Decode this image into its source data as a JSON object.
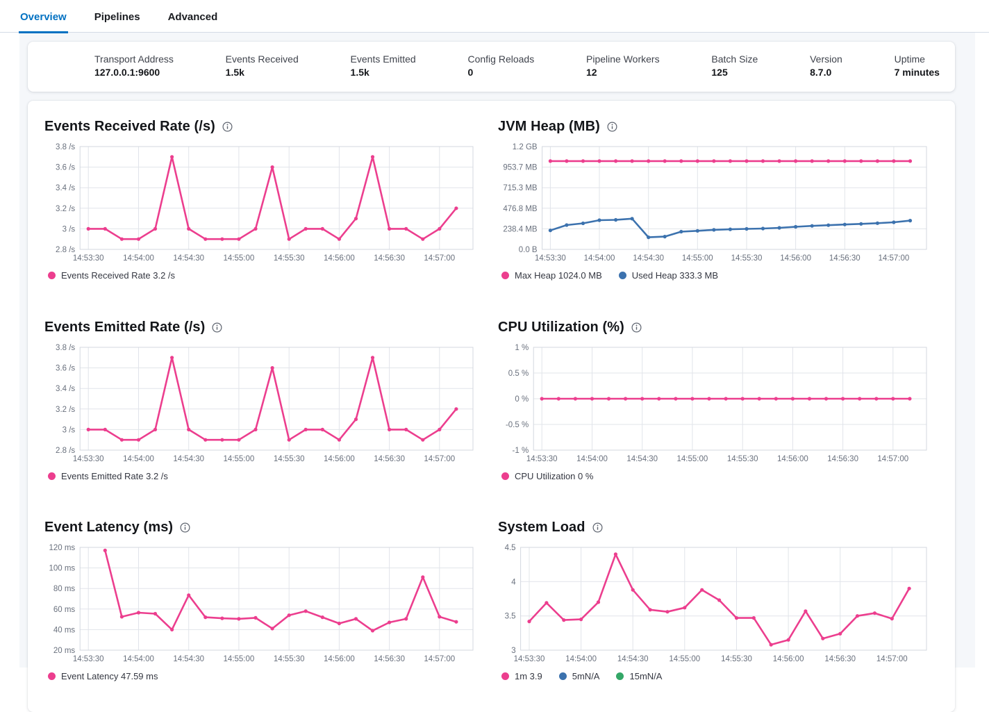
{
  "tabs": [
    {
      "label": "Overview",
      "active": true
    },
    {
      "label": "Pipelines",
      "active": false
    },
    {
      "label": "Advanced",
      "active": false
    }
  ],
  "stats": [
    {
      "label": "Transport Address",
      "value": "127.0.0.1:9600"
    },
    {
      "label": "Events Received",
      "value": "1.5k"
    },
    {
      "label": "Events Emitted",
      "value": "1.5k"
    },
    {
      "label": "Config Reloads",
      "value": "0"
    },
    {
      "label": "Pipeline Workers",
      "value": "12"
    },
    {
      "label": "Batch Size",
      "value": "125"
    },
    {
      "label": "Version",
      "value": "8.7.0"
    },
    {
      "label": "Uptime",
      "value": "7 minutes"
    }
  ],
  "colors": {
    "accent_blue": "#0071c2",
    "series_pink": "#ec3e8e",
    "series_blue": "#3c72ae",
    "series_green": "#34a767"
  },
  "chart_data": [
    {
      "type": "line",
      "title": "Events Received Rate (/s)",
      "xlabel": "",
      "ylabel": "/s",
      "ylim": [
        2.8,
        3.8
      ],
      "x_domain": [
        "14:53:25",
        "14:57:20"
      ],
      "x_ticks": [
        "14:53:30",
        "14:54:00",
        "14:54:30",
        "14:55:00",
        "14:55:30",
        "14:56:00",
        "14:56:30",
        "14:57:00"
      ],
      "y_ticks": [
        {
          "value": 2.8,
          "label": "2.8 /s"
        },
        {
          "value": 3.0,
          "label": "3 /s"
        },
        {
          "value": 3.2,
          "label": "3.2 /s"
        },
        {
          "value": 3.4,
          "label": "3.4 /s"
        },
        {
          "value": 3.6,
          "label": "3.6 /s"
        },
        {
          "value": 3.8,
          "label": "3.8 /s"
        }
      ],
      "x": [
        "14:53:30",
        "14:53:40",
        "14:53:50",
        "14:54:00",
        "14:54:10",
        "14:54:20",
        "14:54:30",
        "14:54:40",
        "14:54:50",
        "14:55:00",
        "14:55:10",
        "14:55:20",
        "14:55:30",
        "14:55:40",
        "14:55:50",
        "14:56:00",
        "14:56:10",
        "14:56:20",
        "14:56:30",
        "14:56:40",
        "14:56:50",
        "14:57:00",
        "14:57:10"
      ],
      "series": [
        {
          "name": "Events Received Rate",
          "legend": "Events Received Rate 3.2 /s",
          "color": "#ec3e8e",
          "values": [
            3.0,
            3.0,
            2.9,
            2.9,
            3.0,
            3.7,
            3.0,
            2.9,
            2.9,
            2.9,
            3.0,
            3.6,
            2.9,
            3.0,
            3.0,
            2.9,
            3.1,
            3.7,
            3.0,
            3.0,
            2.9,
            3.0,
            3.2
          ]
        }
      ]
    },
    {
      "type": "line",
      "title": "JVM Heap (MB)",
      "xlabel": "",
      "ylabel": "MB",
      "ylim": [
        0,
        1192.1
      ],
      "x_domain": [
        "14:53:25",
        "14:57:20"
      ],
      "x_ticks": [
        "14:53:30",
        "14:54:00",
        "14:54:30",
        "14:55:00",
        "14:55:30",
        "14:56:00",
        "14:56:30",
        "14:57:00"
      ],
      "y_ticks": [
        {
          "value": 0,
          "label": "0.0 B"
        },
        {
          "value": 238.4,
          "label": "238.4 MB"
        },
        {
          "value": 476.8,
          "label": "476.8 MB"
        },
        {
          "value": 715.3,
          "label": "715.3 MB"
        },
        {
          "value": 953.7,
          "label": "953.7 MB"
        },
        {
          "value": 1192.1,
          "label": "1.2 GB"
        }
      ],
      "x": [
        "14:53:30",
        "14:53:40",
        "14:53:50",
        "14:54:00",
        "14:54:10",
        "14:54:20",
        "14:54:30",
        "14:54:40",
        "14:54:50",
        "14:55:00",
        "14:55:10",
        "14:55:20",
        "14:55:30",
        "14:55:40",
        "14:55:50",
        "14:56:00",
        "14:56:10",
        "14:56:20",
        "14:56:30",
        "14:56:40",
        "14:56:50",
        "14:57:00",
        "14:57:10"
      ],
      "series": [
        {
          "name": "Max Heap",
          "legend": "Max Heap 1024.0 MB",
          "color": "#ec3e8e",
          "values": [
            1024,
            1024,
            1024,
            1024,
            1024,
            1024,
            1024,
            1024,
            1024,
            1024,
            1024,
            1024,
            1024,
            1024,
            1024,
            1024,
            1024,
            1024,
            1024,
            1024,
            1024,
            1024,
            1024
          ]
        },
        {
          "name": "Used Heap",
          "legend": "Used Heap 333.3 MB",
          "color": "#3c72ae",
          "values": [
            220,
            282,
            302,
            338,
            342,
            356,
            140,
            148,
            205,
            215,
            226,
            233,
            238,
            242,
            250,
            262,
            272,
            280,
            288,
            296,
            304,
            314,
            333.3
          ]
        }
      ]
    },
    {
      "type": "line",
      "title": "Events Emitted Rate (/s)",
      "xlabel": "",
      "ylabel": "/s",
      "ylim": [
        2.8,
        3.8
      ],
      "x_domain": [
        "14:53:25",
        "14:57:20"
      ],
      "x_ticks": [
        "14:53:30",
        "14:54:00",
        "14:54:30",
        "14:55:00",
        "14:55:30",
        "14:56:00",
        "14:56:30",
        "14:57:00"
      ],
      "y_ticks": [
        {
          "value": 2.8,
          "label": "2.8 /s"
        },
        {
          "value": 3.0,
          "label": "3 /s"
        },
        {
          "value": 3.2,
          "label": "3.2 /s"
        },
        {
          "value": 3.4,
          "label": "3.4 /s"
        },
        {
          "value": 3.6,
          "label": "3.6 /s"
        },
        {
          "value": 3.8,
          "label": "3.8 /s"
        }
      ],
      "x": [
        "14:53:30",
        "14:53:40",
        "14:53:50",
        "14:54:00",
        "14:54:10",
        "14:54:20",
        "14:54:30",
        "14:54:40",
        "14:54:50",
        "14:55:00",
        "14:55:10",
        "14:55:20",
        "14:55:30",
        "14:55:40",
        "14:55:50",
        "14:56:00",
        "14:56:10",
        "14:56:20",
        "14:56:30",
        "14:56:40",
        "14:56:50",
        "14:57:00",
        "14:57:10"
      ],
      "series": [
        {
          "name": "Events Emitted Rate",
          "legend": "Events Emitted Rate 3.2 /s",
          "color": "#ec3e8e",
          "values": [
            3.0,
            3.0,
            2.9,
            2.9,
            3.0,
            3.7,
            3.0,
            2.9,
            2.9,
            2.9,
            3.0,
            3.6,
            2.9,
            3.0,
            3.0,
            2.9,
            3.1,
            3.7,
            3.0,
            3.0,
            2.9,
            3.0,
            3.2
          ]
        }
      ]
    },
    {
      "type": "line",
      "title": "CPU Utilization (%)",
      "xlabel": "",
      "ylabel": "%",
      "ylim": [
        -1,
        1
      ],
      "x_domain": [
        "14:53:25",
        "14:57:20"
      ],
      "x_ticks": [
        "14:53:30",
        "14:54:00",
        "14:54:30",
        "14:55:00",
        "14:55:30",
        "14:56:00",
        "14:56:30",
        "14:57:00"
      ],
      "y_ticks": [
        {
          "value": -1,
          "label": "-1 %"
        },
        {
          "value": -0.5,
          "label": "-0.5 %"
        },
        {
          "value": 0,
          "label": "0 %"
        },
        {
          "value": 0.5,
          "label": "0.5 %"
        },
        {
          "value": 1,
          "label": "1 %"
        }
      ],
      "x": [
        "14:53:30",
        "14:53:40",
        "14:53:50",
        "14:54:00",
        "14:54:10",
        "14:54:20",
        "14:54:30",
        "14:54:40",
        "14:54:50",
        "14:55:00",
        "14:55:10",
        "14:55:20",
        "14:55:30",
        "14:55:40",
        "14:55:50",
        "14:56:00",
        "14:56:10",
        "14:56:20",
        "14:56:30",
        "14:56:40",
        "14:56:50",
        "14:57:00",
        "14:57:10"
      ],
      "series": [
        {
          "name": "CPU Utilization",
          "legend": "CPU Utilization 0 %",
          "color": "#ec3e8e",
          "values": [
            0,
            0,
            0,
            0,
            0,
            0,
            0,
            0,
            0,
            0,
            0,
            0,
            0,
            0,
            0,
            0,
            0,
            0,
            0,
            0,
            0,
            0,
            0
          ]
        }
      ]
    },
    {
      "type": "line",
      "title": "Event Latency (ms)",
      "xlabel": "",
      "ylabel": "ms",
      "ylim": [
        20,
        120
      ],
      "x_domain": [
        "14:53:25",
        "14:57:20"
      ],
      "x_ticks": [
        "14:53:30",
        "14:54:00",
        "14:54:30",
        "14:55:00",
        "14:55:30",
        "14:56:00",
        "14:56:30",
        "14:57:00"
      ],
      "y_ticks": [
        {
          "value": 20,
          "label": "20 ms"
        },
        {
          "value": 40,
          "label": "40 ms"
        },
        {
          "value": 60,
          "label": "60 ms"
        },
        {
          "value": 80,
          "label": "80 ms"
        },
        {
          "value": 100,
          "label": "100 ms"
        },
        {
          "value": 120,
          "label": "120 ms"
        }
      ],
      "x": [
        "14:53:40",
        "14:53:50",
        "14:54:00",
        "14:54:10",
        "14:54:20",
        "14:54:30",
        "14:54:40",
        "14:54:50",
        "14:55:00",
        "14:55:10",
        "14:55:20",
        "14:55:30",
        "14:55:40",
        "14:55:50",
        "14:56:00",
        "14:56:10",
        "14:56:20",
        "14:56:30",
        "14:56:40",
        "14:56:50",
        "14:57:00",
        "14:57:10"
      ],
      "series": [
        {
          "name": "Event Latency",
          "legend": "Event Latency 47.59 ms",
          "color": "#ec3e8e",
          "values": [
            117,
            52.5,
            56.5,
            55.5,
            40,
            73.5,
            52,
            51,
            50.5,
            51.5,
            41,
            54,
            58,
            52,
            46,
            50.5,
            39,
            47,
            50.5,
            91,
            52.5,
            47.59
          ]
        }
      ]
    },
    {
      "type": "line",
      "title": "System Load",
      "xlabel": "",
      "ylabel": "",
      "ylim": [
        3,
        4.5
      ],
      "x_domain": [
        "14:53:25",
        "14:57:20"
      ],
      "x_ticks": [
        "14:53:30",
        "14:54:00",
        "14:54:30",
        "14:55:00",
        "14:55:30",
        "14:56:00",
        "14:56:30",
        "14:57:00"
      ],
      "y_ticks": [
        {
          "value": 3,
          "label": "3"
        },
        {
          "value": 3.5,
          "label": "3.5"
        },
        {
          "value": 4,
          "label": "4"
        },
        {
          "value": 4.5,
          "label": "4.5"
        }
      ],
      "x": [
        "14:53:30",
        "14:53:40",
        "14:53:50",
        "14:54:00",
        "14:54:10",
        "14:54:20",
        "14:54:30",
        "14:54:40",
        "14:54:50",
        "14:55:00",
        "14:55:10",
        "14:55:20",
        "14:55:30",
        "14:55:40",
        "14:55:50",
        "14:56:00",
        "14:56:10",
        "14:56:20",
        "14:56:30",
        "14:56:40",
        "14:56:50",
        "14:57:00",
        "14:57:10"
      ],
      "series": [
        {
          "name": "1m",
          "legend": "1m 3.9",
          "color": "#ec3e8e",
          "values": [
            3.42,
            3.69,
            3.44,
            3.45,
            3.7,
            4.4,
            3.88,
            3.59,
            3.56,
            3.62,
            3.88,
            3.73,
            3.47,
            3.47,
            3.08,
            3.15,
            3.57,
            3.17,
            3.24,
            3.5,
            3.54,
            3.46,
            3.9
          ]
        },
        {
          "name": "5m",
          "legend": "5mN/A",
          "color": "#3c72ae",
          "values": []
        },
        {
          "name": "15m",
          "legend": "15mN/A",
          "color": "#34a767",
          "values": []
        }
      ]
    }
  ]
}
